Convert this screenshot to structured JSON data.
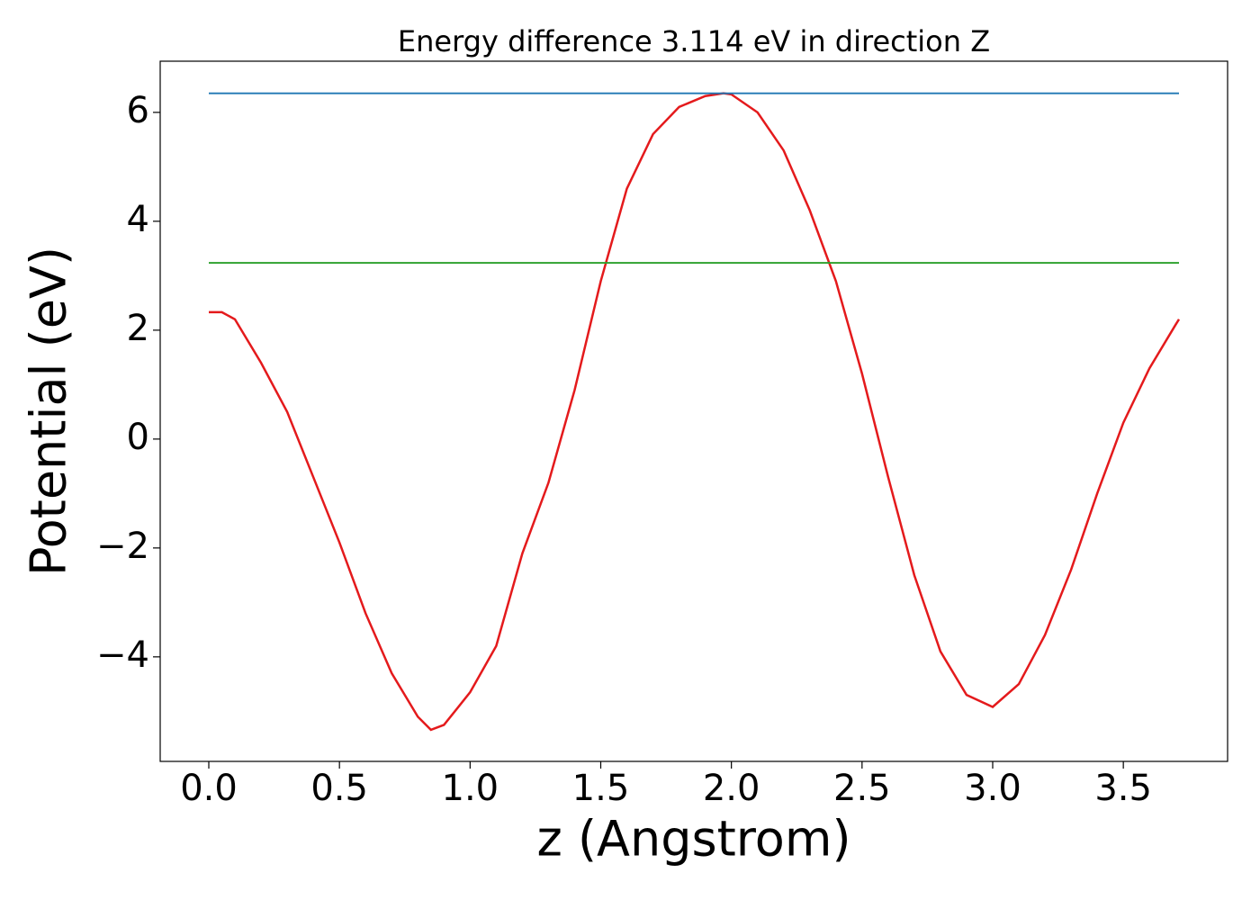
{
  "chart_data": {
    "type": "line",
    "title": "Energy difference 3.114 eV in direction Z",
    "x_label": "z (Angstrom)",
    "y_label": "Potential (eV)",
    "series": [
      {
        "color": "#e41a1c",
        "x": [
          0,
          0.05,
          0.1,
          0.2,
          0.3,
          0.4,
          0.5,
          0.6,
          0.7,
          0.8,
          0.85,
          0.9,
          1.0,
          1.1,
          1.2,
          1.3,
          1.4,
          1.5,
          1.6,
          1.7,
          1.8,
          1.9,
          1.97,
          2.0,
          2.1,
          2.2,
          2.3,
          2.4,
          2.5,
          2.6,
          2.7,
          2.8,
          2.9,
          3.0,
          3.1,
          3.2,
          3.3,
          3.4,
          3.5,
          3.6,
          3.7,
          3.713
        ],
        "values": [
          2.33,
          2.33,
          2.2,
          1.4,
          0.5,
          -0.7,
          -1.9,
          -3.2,
          -4.3,
          -5.1,
          -5.34,
          -5.25,
          -4.65,
          -3.8,
          -2.1,
          -0.8,
          0.9,
          2.9,
          4.6,
          5.6,
          6.1,
          6.3,
          6.35,
          6.33,
          6.0,
          5.3,
          4.2,
          2.9,
          1.2,
          -0.7,
          -2.5,
          -3.9,
          -4.7,
          -4.92,
          -4.5,
          -3.6,
          -2.4,
          -1.0,
          0.3,
          1.3,
          2.1,
          2.2
        ]
      },
      {
        "color": "#1f77b4",
        "x": [
          0,
          3.713
        ],
        "values": [
          6.35,
          6.35
        ]
      },
      {
        "color": "#2ca02c",
        "x": [
          0,
          3.713
        ],
        "values": [
          3.236,
          3.236
        ]
      }
    ],
    "xlim": [
      -0.186,
      3.899
    ],
    "ylim": [
      -5.92,
      6.94
    ],
    "xticks": [
      {
        "value": 0,
        "label": "0.0"
      },
      {
        "value": 0.5,
        "label": "0.5"
      },
      {
        "value": 1,
        "label": "1.0"
      },
      {
        "value": 1.5,
        "label": "1.5"
      },
      {
        "value": 2,
        "label": "2.0"
      },
      {
        "value": 2.5,
        "label": "2.5"
      },
      {
        "value": 3,
        "label": "3.0"
      },
      {
        "value": 3.5,
        "label": "3.5"
      }
    ],
    "yticks": [
      {
        "value": -4,
        "label": "−4"
      },
      {
        "value": -2,
        "label": "−2"
      },
      0,
      2,
      4,
      6
    ]
  }
}
